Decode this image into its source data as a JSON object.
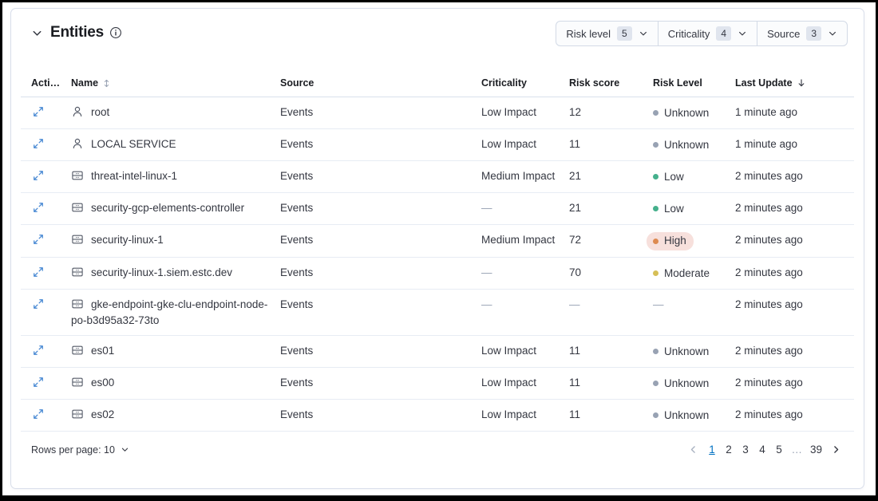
{
  "panel": {
    "title": "Entities",
    "filters": [
      {
        "label": "Risk level",
        "count": "5"
      },
      {
        "label": "Criticality",
        "count": "4"
      },
      {
        "label": "Source",
        "count": "3"
      }
    ]
  },
  "table": {
    "columns": {
      "actions": "Actio…",
      "name": "Name",
      "source": "Source",
      "criticality": "Criticality",
      "risk_score": "Risk score",
      "risk_level": "Risk Level",
      "last_update": "Last Update"
    },
    "rows": [
      {
        "type": "user",
        "name": "root",
        "source": "Events",
        "criticality": "Low Impact",
        "risk_score": "12",
        "risk_level": "Unknown",
        "last_update": "1 minute ago"
      },
      {
        "type": "user",
        "name": "LOCAL SERVICE",
        "source": "Events",
        "criticality": "Low Impact",
        "risk_score": "11",
        "risk_level": "Unknown",
        "last_update": "1 minute ago"
      },
      {
        "type": "host",
        "name": "threat-intel-linux-1",
        "source": "Events",
        "criticality": "Medium Impact",
        "risk_score": "21",
        "risk_level": "Low",
        "last_update": "2 minutes ago"
      },
      {
        "type": "host",
        "name": "security-gcp-elements-controller",
        "source": "Events",
        "criticality": "—",
        "risk_score": "21",
        "risk_level": "Low",
        "last_update": "2 minutes ago"
      },
      {
        "type": "host",
        "name": "security-linux-1",
        "source": "Events",
        "criticality": "Medium Impact",
        "risk_score": "72",
        "risk_level": "High",
        "last_update": "2 minutes ago"
      },
      {
        "type": "host",
        "name": "security-linux-1.siem.estc.dev",
        "source": "Events",
        "criticality": "—",
        "risk_score": "70",
        "risk_level": "Moderate",
        "last_update": "2 minutes ago"
      },
      {
        "type": "host",
        "name": "gke-endpoint-gke-clu-endpoint-node-po-b3d95a32-73to",
        "source": "Events",
        "criticality": "—",
        "risk_score": "—",
        "risk_level": "—",
        "last_update": "2 minutes ago"
      },
      {
        "type": "host",
        "name": "es01",
        "source": "Events",
        "criticality": "Low Impact",
        "risk_score": "11",
        "risk_level": "Unknown",
        "last_update": "2 minutes ago"
      },
      {
        "type": "host",
        "name": "es00",
        "source": "Events",
        "criticality": "Low Impact",
        "risk_score": "11",
        "risk_level": "Unknown",
        "last_update": "2 minutes ago"
      },
      {
        "type": "host",
        "name": "es02",
        "source": "Events",
        "criticality": "Low Impact",
        "risk_score": "11",
        "risk_level": "Unknown",
        "last_update": "2 minutes ago"
      }
    ]
  },
  "footer": {
    "rows_per_page_label": "Rows per page: 10",
    "pages": [
      "1",
      "2",
      "3",
      "4",
      "5",
      "…",
      "39"
    ],
    "active_page": "1"
  },
  "colors": {
    "primary": "#0071c2",
    "risk_unknown": "#98a2b3",
    "risk_low": "#45b08c",
    "risk_moderate": "#d6bf57",
    "risk_high": "#dd8a50",
    "risk_high_bg": "#f7e0dc"
  }
}
